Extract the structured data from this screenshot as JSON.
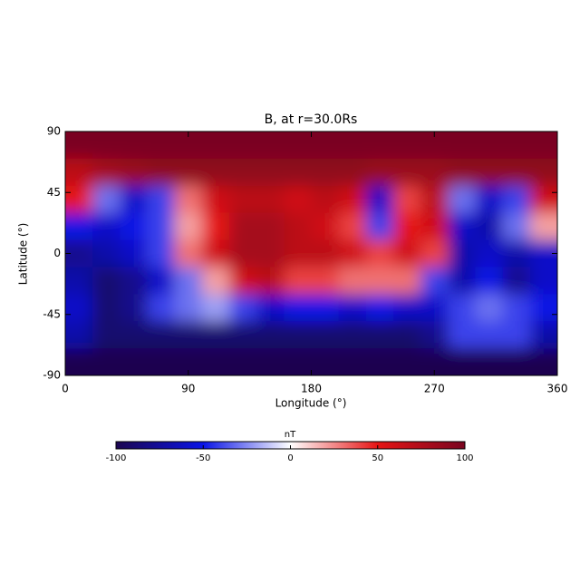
{
  "chart_data": {
    "type": "heatmap",
    "title": "B, at r=30.0Rs",
    "xlabel": "Longitude (°)",
    "ylabel": "Latitude (°)",
    "x": [
      10,
      30,
      50,
      70,
      90,
      110,
      130,
      150,
      170,
      190,
      210,
      230,
      250,
      270,
      290,
      310,
      330,
      350
    ],
    "y": [
      80,
      60,
      40,
      20,
      0,
      -20,
      -40,
      -60,
      -80
    ],
    "z": [
      [
        100,
        100,
        100,
        100,
        100,
        100,
        100,
        100,
        100,
        100,
        100,
        100,
        100,
        100,
        100,
        100,
        100,
        100
      ],
      [
        70,
        80,
        85,
        90,
        90,
        90,
        90,
        90,
        90,
        90,
        90,
        85,
        85,
        85,
        90,
        90,
        90,
        90
      ],
      [
        50,
        -30,
        -60,
        -40,
        30,
        60,
        70,
        70,
        60,
        70,
        60,
        -60,
        40,
        70,
        -30,
        -60,
        -40,
        60
      ],
      [
        -50,
        -60,
        -50,
        -40,
        20,
        50,
        80,
        80,
        70,
        60,
        40,
        -40,
        50,
        60,
        -60,
        -70,
        -30,
        20
      ],
      [
        -80,
        -70,
        -60,
        -40,
        30,
        60,
        80,
        80,
        70,
        70,
        60,
        40,
        60,
        40,
        -70,
        -60,
        -70,
        -60
      ],
      [
        -70,
        -90,
        -80,
        -60,
        -30,
        20,
        60,
        70,
        40,
        40,
        30,
        30,
        30,
        -40,
        -70,
        -50,
        -80,
        -60
      ],
      [
        -60,
        -90,
        -80,
        -40,
        -30,
        -20,
        -40,
        -60,
        -50,
        -50,
        -60,
        -50,
        -60,
        -60,
        -40,
        -30,
        -40,
        -50
      ],
      [
        -70,
        -90,
        -90,
        -90,
        -90,
        -90,
        -90,
        -90,
        -90,
        -90,
        -90,
        -90,
        -90,
        -80,
        -40,
        -40,
        -40,
        -70
      ],
      [
        -100,
        -100,
        -100,
        -100,
        -100,
        -100,
        -100,
        -100,
        -100,
        -100,
        -100,
        -100,
        -100,
        -100,
        -100,
        -100,
        -100,
        -100
      ]
    ],
    "xlim": [
      0,
      360
    ],
    "xticks": [
      0,
      90,
      180,
      270,
      360
    ],
    "ylim": [
      -90,
      90
    ],
    "yticks": [
      -90,
      -45,
      0,
      45,
      90
    ],
    "zlim": [
      -100,
      100
    ],
    "zticks": [
      -100,
      -50,
      0,
      50,
      100
    ],
    "zlabel": "nT",
    "colorscale": [
      "#1c0650",
      "#0a14e6",
      "#ffffff",
      "#e61414",
      "#7a0520"
    ]
  }
}
